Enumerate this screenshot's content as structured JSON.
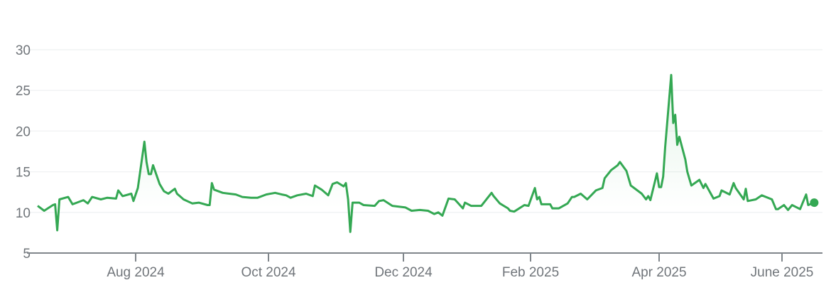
{
  "chart_data": {
    "type": "area",
    "title": "",
    "xlabel": "",
    "ylabel": "",
    "ylim": [
      5,
      30
    ],
    "y_ticks": [
      "5",
      "10",
      "15",
      "20",
      "25",
      "30"
    ],
    "x_ticks": [
      {
        "label": "Aug 2024",
        "date": "2024-08-01"
      },
      {
        "label": "Oct 2024",
        "date": "2024-10-01"
      },
      {
        "label": "Dec 2024",
        "date": "2024-12-01"
      },
      {
        "label": "Feb 2025",
        "date": "2025-02-01"
      },
      {
        "label": "Apr 2025",
        "date": "2025-04-01"
      },
      {
        "label": "June 2025",
        "date": "2025-06-01"
      }
    ],
    "grid": true,
    "line_color": "#34a853",
    "series": [
      {
        "points": [
          [
            "2024-06-17",
            10.8
          ],
          [
            "2024-06-20",
            10.2
          ],
          [
            "2024-06-24",
            10.9
          ],
          [
            "2024-06-25",
            11.0
          ],
          [
            "2024-06-26",
            7.8
          ],
          [
            "2024-06-27",
            11.6
          ],
          [
            "2024-07-01",
            11.9
          ],
          [
            "2024-07-03",
            11.0
          ],
          [
            "2024-07-05",
            11.2
          ],
          [
            "2024-07-08",
            11.5
          ],
          [
            "2024-07-10",
            11.1
          ],
          [
            "2024-07-12",
            11.9
          ],
          [
            "2024-07-16",
            11.6
          ],
          [
            "2024-07-19",
            11.8
          ],
          [
            "2024-07-23",
            11.7
          ],
          [
            "2024-07-24",
            12.7
          ],
          [
            "2024-07-26",
            12.0
          ],
          [
            "2024-07-30",
            12.3
          ],
          [
            "2024-07-31",
            11.4
          ],
          [
            "2024-08-02",
            13.0
          ],
          [
            "2024-08-05",
            18.7
          ],
          [
            "2024-08-06",
            16.2
          ],
          [
            "2024-08-07",
            14.7
          ],
          [
            "2024-08-08",
            14.7
          ],
          [
            "2024-08-09",
            15.8
          ],
          [
            "2024-08-12",
            13.5
          ],
          [
            "2024-08-14",
            12.6
          ],
          [
            "2024-08-16",
            12.3
          ],
          [
            "2024-08-19",
            12.9
          ],
          [
            "2024-08-20",
            12.3
          ],
          [
            "2024-08-23",
            11.6
          ],
          [
            "2024-08-27",
            11.1
          ],
          [
            "2024-08-30",
            11.2
          ],
          [
            "2024-09-03",
            10.9
          ],
          [
            "2024-09-04",
            10.9
          ],
          [
            "2024-09-05",
            13.6
          ],
          [
            "2024-09-06",
            12.8
          ],
          [
            "2024-09-10",
            12.4
          ],
          [
            "2024-09-13",
            12.3
          ],
          [
            "2024-09-16",
            12.2
          ],
          [
            "2024-09-19",
            11.9
          ],
          [
            "2024-09-23",
            11.8
          ],
          [
            "2024-09-26",
            11.8
          ],
          [
            "2024-09-30",
            12.2
          ],
          [
            "2024-10-04",
            12.4
          ],
          [
            "2024-10-07",
            12.2
          ],
          [
            "2024-10-09",
            12.1
          ],
          [
            "2024-10-11",
            11.8
          ],
          [
            "2024-10-14",
            12.1
          ],
          [
            "2024-10-18",
            12.3
          ],
          [
            "2024-10-21",
            12.0
          ],
          [
            "2024-10-22",
            13.3
          ],
          [
            "2024-10-25",
            12.8
          ],
          [
            "2024-10-28",
            12.1
          ],
          [
            "2024-10-30",
            13.5
          ],
          [
            "2024-11-01",
            13.7
          ],
          [
            "2024-11-04",
            13.2
          ],
          [
            "2024-11-05",
            13.6
          ],
          [
            "2024-11-06",
            11.6
          ],
          [
            "2024-11-07",
            7.6
          ],
          [
            "2024-11-08",
            11.2
          ],
          [
            "2024-11-11",
            11.2
          ],
          [
            "2024-11-13",
            10.9
          ],
          [
            "2024-11-18",
            10.8
          ],
          [
            "2024-11-20",
            11.4
          ],
          [
            "2024-11-22",
            11.5
          ],
          [
            "2024-11-26",
            10.8
          ],
          [
            "2024-12-02",
            10.6
          ],
          [
            "2024-12-05",
            10.2
          ],
          [
            "2024-12-09",
            10.3
          ],
          [
            "2024-12-13",
            10.2
          ],
          [
            "2024-12-16",
            9.8
          ],
          [
            "2024-12-18",
            10.0
          ],
          [
            "2024-12-20",
            9.6
          ],
          [
            "2024-12-23",
            11.7
          ],
          [
            "2024-12-26",
            11.6
          ],
          [
            "2024-12-30",
            10.5
          ],
          [
            "2024-12-31",
            11.2
          ],
          [
            "2025-01-03",
            10.8
          ],
          [
            "2025-01-08",
            10.8
          ],
          [
            "2025-01-13",
            12.4
          ],
          [
            "2025-01-14",
            12.0
          ],
          [
            "2025-01-17",
            11.1
          ],
          [
            "2025-01-21",
            10.5
          ],
          [
            "2025-01-22",
            10.2
          ],
          [
            "2025-01-24",
            10.1
          ],
          [
            "2025-01-29",
            10.9
          ],
          [
            "2025-01-31",
            10.8
          ],
          [
            "2025-02-03",
            13.0
          ],
          [
            "2025-02-04",
            11.6
          ],
          [
            "2025-02-05",
            11.9
          ],
          [
            "2025-02-06",
            11.0
          ],
          [
            "2025-02-10",
            11.0
          ],
          [
            "2025-02-11",
            10.5
          ],
          [
            "2025-02-14",
            10.5
          ],
          [
            "2025-02-18",
            11.1
          ],
          [
            "2025-02-20",
            11.9
          ],
          [
            "2025-02-21",
            11.9
          ],
          [
            "2025-02-24",
            12.3
          ],
          [
            "2025-02-27",
            11.6
          ],
          [
            "2025-03-03",
            12.7
          ],
          [
            "2025-03-06",
            13.0
          ],
          [
            "2025-03-07",
            14.2
          ],
          [
            "2025-03-10",
            15.2
          ],
          [
            "2025-03-13",
            15.8
          ],
          [
            "2025-03-14",
            16.2
          ],
          [
            "2025-03-17",
            15.1
          ],
          [
            "2025-03-19",
            13.3
          ],
          [
            "2025-03-24",
            12.3
          ],
          [
            "2025-03-26",
            11.6
          ],
          [
            "2025-03-27",
            12.0
          ],
          [
            "2025-03-28",
            11.5
          ],
          [
            "2025-03-31",
            14.8
          ],
          [
            "2025-04-01",
            13.1
          ],
          [
            "2025-04-02",
            13.1
          ],
          [
            "2025-04-03",
            14.4
          ],
          [
            "2025-04-04",
            18.0
          ],
          [
            "2025-04-07",
            26.9
          ],
          [
            "2025-04-08",
            21.0
          ],
          [
            "2025-04-09",
            22.0
          ],
          [
            "2025-04-10",
            18.3
          ],
          [
            "2025-04-11",
            19.3
          ],
          [
            "2025-04-14",
            16.5
          ],
          [
            "2025-04-15",
            15.0
          ],
          [
            "2025-04-17",
            13.3
          ],
          [
            "2025-04-21",
            14.0
          ],
          [
            "2025-04-23",
            13.0
          ],
          [
            "2025-04-24",
            13.5
          ],
          [
            "2025-04-28",
            11.7
          ],
          [
            "2025-05-01",
            12.0
          ],
          [
            "2025-05-02",
            12.7
          ],
          [
            "2025-05-06",
            12.2
          ],
          [
            "2025-05-08",
            13.6
          ],
          [
            "2025-05-09",
            13.0
          ],
          [
            "2025-05-13",
            11.6
          ],
          [
            "2025-05-14",
            12.9
          ],
          [
            "2025-05-15",
            11.4
          ],
          [
            "2025-05-19",
            11.6
          ],
          [
            "2025-05-22",
            12.1
          ],
          [
            "2025-05-27",
            11.6
          ],
          [
            "2025-05-29",
            10.4
          ],
          [
            "2025-05-30",
            10.4
          ],
          [
            "2025-06-02",
            10.9
          ],
          [
            "2025-06-04",
            10.3
          ],
          [
            "2025-06-06",
            10.9
          ],
          [
            "2025-06-10",
            10.4
          ],
          [
            "2025-06-13",
            12.2
          ],
          [
            "2025-06-14",
            10.9
          ],
          [
            "2025-06-17",
            11.2
          ]
        ]
      }
    ]
  }
}
